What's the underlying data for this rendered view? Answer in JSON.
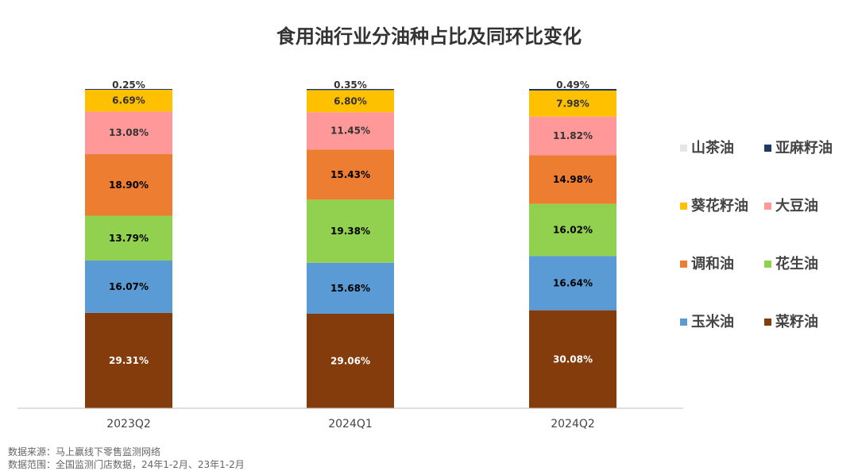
{
  "chart_data": {
    "type": "bar",
    "stacked": true,
    "title": "食用油行业分油种占比及同环比变化",
    "categories": [
      "2023Q2",
      "2024Q1",
      "2024Q2"
    ],
    "series": [
      {
        "name": "菜籽油",
        "color": "#843C0C",
        "label_color": "#ffffff",
        "values": [
          29.31,
          29.06,
          30.08
        ],
        "labels": [
          "29.31%",
          "29.06%",
          "30.08%"
        ]
      },
      {
        "name": "玉米油",
        "color": "#5B9BD5",
        "label_color": "#000000",
        "values": [
          16.07,
          15.68,
          16.64
        ],
        "labels": [
          "16.07%",
          "15.68%",
          "16.64%"
        ]
      },
      {
        "name": "花生油",
        "color": "#92D050",
        "label_color": "#000000",
        "values": [
          13.79,
          19.38,
          16.02
        ],
        "labels": [
          "13.79%",
          "19.38%",
          "16.02%"
        ]
      },
      {
        "name": "调和油",
        "color": "#ED7D31",
        "label_color": "#000000",
        "values": [
          18.9,
          15.43,
          14.98
        ],
        "labels": [
          "18.90%",
          "15.43%",
          "14.98%"
        ]
      },
      {
        "name": "大豆油",
        "color": "#FF9999",
        "label_color": "#333333",
        "values": [
          13.08,
          11.45,
          11.82
        ],
        "labels": [
          "13.08%",
          "11.45%",
          "11.82%"
        ]
      },
      {
        "name": "葵花籽油",
        "color": "#FFC000",
        "label_color": "#333333",
        "values": [
          6.69,
          6.8,
          7.98
        ],
        "labels": [
          "6.69%",
          "6.80%",
          "7.98%"
        ]
      },
      {
        "name": "亚麻籽油",
        "color": "#1F3864",
        "label_color": "#333333",
        "values": [
          0.25,
          0.35,
          0.49
        ],
        "labels": [
          "0.25%",
          "0.35%",
          "0.49%"
        ]
      },
      {
        "name": "山茶油",
        "color": "#E7E6E6",
        "label_color": "#333333",
        "values": [
          0,
          0,
          0
        ],
        "labels": []
      }
    ],
    "legend": {
      "position": "right",
      "order": [
        "山茶油",
        "亚麻籽油",
        "葵花籽油",
        "大豆油",
        "调和油",
        "花生油",
        "玉米油",
        "菜籽油"
      ]
    },
    "grid": false
  },
  "footer": {
    "source": "数据来源：马上赢线下零售监测网络",
    "range": "数据范围：全国监测门店数据，24年1-2月、23年1-2月"
  }
}
